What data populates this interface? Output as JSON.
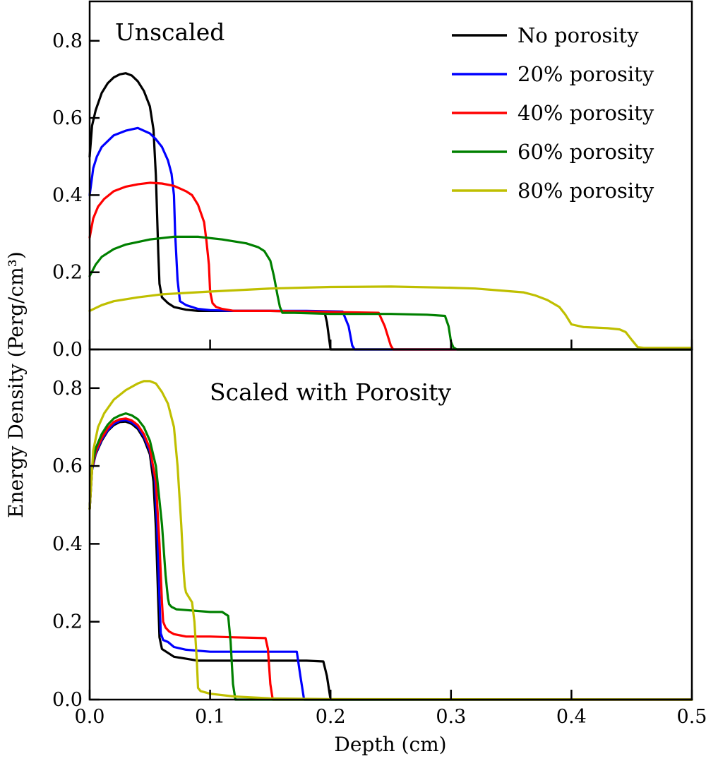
{
  "chart_data": [
    {
      "type": "line",
      "panel": "top",
      "title": "Unscaled",
      "xlabel": "Depth (cm)",
      "ylabel": "Energy Density (Perg/cm³)",
      "xlim": [
        0.0,
        0.5
      ],
      "ylim": [
        0.0,
        0.9
      ],
      "xticks": [
        "0.0",
        "0.1",
        "0.2",
        "0.3",
        "0.4",
        "0.5"
      ],
      "xtick_values": [
        0.0,
        0.1,
        0.2,
        0.3,
        0.4,
        0.5
      ],
      "yticks": [
        "0.0",
        "0.2",
        "0.4",
        "0.6",
        "0.8"
      ],
      "ytick_values": [
        0.0,
        0.2,
        0.4,
        0.6,
        0.8
      ],
      "grid": false,
      "legend_position": "top-right",
      "series": [
        {
          "name": "No porosity",
          "color": "#000000",
          "x": [
            0.0,
            0.002,
            0.005,
            0.01,
            0.015,
            0.02,
            0.025,
            0.03,
            0.035,
            0.04,
            0.045,
            0.05,
            0.053,
            0.055,
            0.057,
            0.058,
            0.06,
            0.065,
            0.07,
            0.08,
            0.09,
            0.1,
            0.12,
            0.15,
            0.18,
            0.195,
            0.197,
            0.2,
            0.25,
            0.3,
            0.5
          ],
          "y": [
            0.5,
            0.58,
            0.62,
            0.665,
            0.69,
            0.705,
            0.713,
            0.716,
            0.71,
            0.695,
            0.67,
            0.63,
            0.57,
            0.45,
            0.25,
            0.17,
            0.135,
            0.12,
            0.11,
            0.103,
            0.1,
            0.1,
            0.1,
            0.1,
            0.098,
            0.097,
            0.07,
            0.0,
            0.0,
            0.0,
            0.0
          ]
        },
        {
          "name": "20% porosity",
          "color": "#0000ff",
          "x": [
            0.0,
            0.003,
            0.006,
            0.01,
            0.02,
            0.03,
            0.04,
            0.05,
            0.055,
            0.06,
            0.065,
            0.068,
            0.07,
            0.071,
            0.073,
            0.075,
            0.08,
            0.09,
            0.1,
            0.12,
            0.15,
            0.18,
            0.21,
            0.215,
            0.218,
            0.22,
            0.3,
            0.5
          ],
          "y": [
            0.4,
            0.47,
            0.5,
            0.525,
            0.555,
            0.567,
            0.574,
            0.56,
            0.545,
            0.525,
            0.49,
            0.455,
            0.4,
            0.3,
            0.18,
            0.125,
            0.115,
            0.105,
            0.102,
            0.1,
            0.1,
            0.1,
            0.098,
            0.06,
            0.01,
            0.0,
            0.0,
            0.0
          ]
        },
        {
          "name": "40% porosity",
          "color": "#ff0000",
          "x": [
            0.0,
            0.003,
            0.007,
            0.012,
            0.02,
            0.03,
            0.04,
            0.05,
            0.06,
            0.07,
            0.08,
            0.085,
            0.09,
            0.095,
            0.097,
            0.099,
            0.1,
            0.102,
            0.105,
            0.11,
            0.12,
            0.15,
            0.2,
            0.24,
            0.245,
            0.25,
            0.252,
            0.3,
            0.5
          ],
          "y": [
            0.29,
            0.34,
            0.37,
            0.39,
            0.41,
            0.422,
            0.428,
            0.432,
            0.43,
            0.424,
            0.41,
            0.4,
            0.375,
            0.33,
            0.28,
            0.22,
            0.15,
            0.12,
            0.11,
            0.105,
            0.1,
            0.1,
            0.097,
            0.095,
            0.06,
            0.01,
            0.0,
            0.0,
            0.0
          ]
        },
        {
          "name": "60% porosity",
          "color": "#008000",
          "x": [
            0.0,
            0.005,
            0.01,
            0.02,
            0.03,
            0.05,
            0.07,
            0.09,
            0.11,
            0.13,
            0.14,
            0.145,
            0.15,
            0.153,
            0.156,
            0.158,
            0.16,
            0.17,
            0.2,
            0.25,
            0.28,
            0.295,
            0.298,
            0.3,
            0.302,
            0.305,
            0.4,
            0.5
          ],
          "y": [
            0.19,
            0.22,
            0.24,
            0.26,
            0.272,
            0.285,
            0.292,
            0.292,
            0.285,
            0.275,
            0.265,
            0.255,
            0.23,
            0.19,
            0.14,
            0.11,
            0.095,
            0.095,
            0.092,
            0.092,
            0.09,
            0.087,
            0.06,
            0.02,
            0.005,
            0.0,
            0.0,
            0.0
          ]
        },
        {
          "name": "80% porosity",
          "color": "#bfbf00",
          "x": [
            0.0,
            0.01,
            0.02,
            0.04,
            0.06,
            0.1,
            0.15,
            0.2,
            0.25,
            0.3,
            0.32,
            0.34,
            0.36,
            0.37,
            0.38,
            0.39,
            0.395,
            0.4,
            0.41,
            0.43,
            0.44,
            0.445,
            0.45,
            0.455,
            0.46,
            0.5
          ],
          "y": [
            0.1,
            0.115,
            0.125,
            0.135,
            0.143,
            0.15,
            0.158,
            0.162,
            0.163,
            0.16,
            0.158,
            0.153,
            0.148,
            0.14,
            0.128,
            0.11,
            0.09,
            0.065,
            0.058,
            0.055,
            0.052,
            0.045,
            0.025,
            0.006,
            0.004,
            0.004
          ]
        }
      ]
    },
    {
      "type": "line",
      "panel": "bottom",
      "title": "Scaled with Porosity",
      "xlabel": "Depth (cm)",
      "ylabel": "Energy Density (Perg/cm³)",
      "xlim": [
        0.0,
        0.5
      ],
      "ylim": [
        0.0,
        0.88
      ],
      "xticks": [
        "0.0",
        "0.1",
        "0.2",
        "0.3",
        "0.4",
        "0.5"
      ],
      "xtick_values": [
        0.0,
        0.1,
        0.2,
        0.3,
        0.4,
        0.5
      ],
      "yticks": [
        "0.0",
        "0.2",
        "0.4",
        "0.6",
        "0.8"
      ],
      "ytick_values": [
        0.0,
        0.2,
        0.4,
        0.6,
        0.8
      ],
      "grid": false,
      "series": [
        {
          "name": "No porosity",
          "color": "#000000",
          "x": [
            0.0,
            0.002,
            0.005,
            0.01,
            0.015,
            0.02,
            0.025,
            0.03,
            0.035,
            0.04,
            0.045,
            0.05,
            0.053,
            0.055,
            0.057,
            0.058,
            0.06,
            0.065,
            0.07,
            0.08,
            0.09,
            0.1,
            0.12,
            0.15,
            0.18,
            0.194,
            0.197,
            0.2,
            0.25,
            0.5
          ],
          "y": [
            0.49,
            0.59,
            0.63,
            0.665,
            0.69,
            0.705,
            0.713,
            0.714,
            0.708,
            0.695,
            0.67,
            0.63,
            0.56,
            0.44,
            0.25,
            0.16,
            0.13,
            0.12,
            0.11,
            0.105,
            0.1,
            0.1,
            0.1,
            0.1,
            0.1,
            0.098,
            0.06,
            0.0,
            0.0,
            0.0
          ]
        },
        {
          "name": "20% porosity",
          "color": "#0000ff",
          "x": [
            0.0,
            0.002,
            0.005,
            0.01,
            0.015,
            0.02,
            0.025,
            0.03,
            0.035,
            0.04,
            0.045,
            0.05,
            0.054,
            0.056,
            0.058,
            0.059,
            0.061,
            0.065,
            0.07,
            0.08,
            0.1,
            0.13,
            0.16,
            0.172,
            0.175,
            0.178,
            0.2,
            0.5
          ],
          "y": [
            0.49,
            0.59,
            0.632,
            0.668,
            0.692,
            0.708,
            0.716,
            0.718,
            0.712,
            0.7,
            0.676,
            0.638,
            0.57,
            0.45,
            0.26,
            0.17,
            0.153,
            0.148,
            0.135,
            0.128,
            0.123,
            0.123,
            0.123,
            0.123,
            0.06,
            0.0,
            0.0,
            0.0
          ]
        },
        {
          "name": "40% porosity",
          "color": "#ff0000",
          "x": [
            0.0,
            0.002,
            0.005,
            0.01,
            0.015,
            0.02,
            0.025,
            0.03,
            0.035,
            0.04,
            0.045,
            0.05,
            0.055,
            0.058,
            0.06,
            0.061,
            0.063,
            0.066,
            0.07,
            0.08,
            0.1,
            0.12,
            0.146,
            0.148,
            0.15,
            0.152,
            0.2,
            0.5
          ],
          "y": [
            0.49,
            0.595,
            0.636,
            0.672,
            0.697,
            0.713,
            0.72,
            0.722,
            0.717,
            0.705,
            0.682,
            0.645,
            0.56,
            0.4,
            0.25,
            0.2,
            0.185,
            0.175,
            0.168,
            0.162,
            0.162,
            0.16,
            0.158,
            0.13,
            0.04,
            0.0,
            0.0,
            0.0
          ]
        },
        {
          "name": "60% porosity",
          "color": "#008000",
          "x": [
            0.0,
            0.002,
            0.005,
            0.01,
            0.015,
            0.02,
            0.025,
            0.03,
            0.035,
            0.04,
            0.045,
            0.05,
            0.055,
            0.06,
            0.063,
            0.065,
            0.066,
            0.068,
            0.072,
            0.08,
            0.1,
            0.11,
            0.115,
            0.117,
            0.119,
            0.121,
            0.15,
            0.5
          ],
          "y": [
            0.49,
            0.6,
            0.645,
            0.682,
            0.706,
            0.722,
            0.73,
            0.735,
            0.73,
            0.72,
            0.7,
            0.665,
            0.6,
            0.45,
            0.32,
            0.26,
            0.245,
            0.238,
            0.232,
            0.23,
            0.225,
            0.225,
            0.215,
            0.15,
            0.04,
            0.0,
            0.0,
            0.0
          ]
        },
        {
          "name": "80% porosity",
          "color": "#bfbf00",
          "x": [
            0.0,
            0.003,
            0.007,
            0.012,
            0.02,
            0.03,
            0.04,
            0.045,
            0.05,
            0.055,
            0.06,
            0.065,
            0.07,
            0.073,
            0.076,
            0.078,
            0.079,
            0.08,
            0.082,
            0.085,
            0.087,
            0.089,
            0.09,
            0.092,
            0.1,
            0.12,
            0.15,
            0.2,
            0.5
          ],
          "y": [
            0.49,
            0.64,
            0.7,
            0.735,
            0.77,
            0.795,
            0.812,
            0.818,
            0.818,
            0.812,
            0.79,
            0.76,
            0.7,
            0.6,
            0.45,
            0.33,
            0.29,
            0.275,
            0.265,
            0.25,
            0.2,
            0.1,
            0.03,
            0.022,
            0.015,
            0.008,
            0.003,
            0.001,
            0.0
          ]
        }
      ]
    }
  ],
  "figure": {
    "ylabel": "Energy Density (Perg/cm³)",
    "xlabel": "Depth (cm)"
  }
}
